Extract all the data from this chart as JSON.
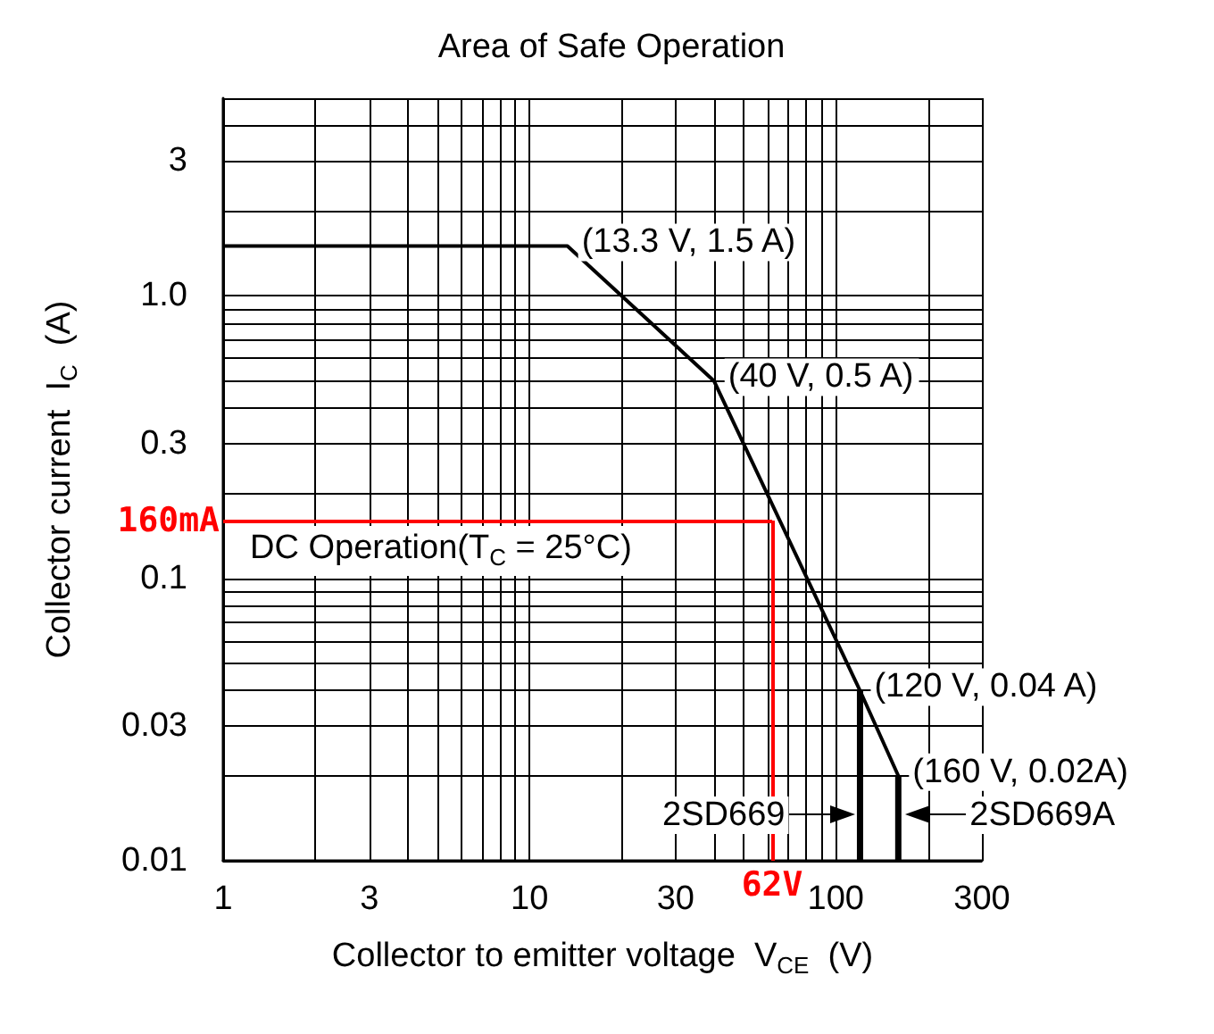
{
  "chart_data": {
    "type": "line",
    "title": "Area of Safe Operation",
    "xlabel": "Collector to emitter voltage  V$_{CE}$  (V)",
    "ylabel": "Collector current  I$_{C}$  (A)",
    "log": "xy",
    "xlim": [
      1,
      300
    ],
    "ylim": [
      0.01,
      5
    ],
    "xticks": [
      1,
      3,
      10,
      30,
      100,
      300
    ],
    "yticks": [
      0.01,
      0.03,
      0.1,
      0.3,
      {
        "value": 1,
        "label": "1.0"
      },
      3
    ],
    "grid": true,
    "marker": "none",
    "line_style": "solid",
    "series": [
      {
        "color": "#000000",
        "x": [
          1,
          13.3,
          40,
          120,
          160
        ],
        "values": [
          1.5,
          1.5,
          0.5,
          0.04,
          0.02
        ]
      },
      {
        "color": "#000000",
        "x": [
          120,
          120
        ],
        "values": [
          0.04,
          0.01
        ]
      },
      {
        "color": "#000000",
        "x": [
          160,
          160
        ],
        "values": [
          0.02,
          0.01
        ]
      }
    ],
    "ref_lines": [
      {
        "axis": "y",
        "value": 0.16,
        "label": "160mA",
        "color": "#ff0000"
      },
      {
        "axis": "x",
        "value": 62,
        "label": "62V",
        "color": "#ff0000"
      }
    ],
    "annotations": [
      "DC Operation(T$_{C}$ = 25°C)",
      {
        "text": "(13.3 V, 1.5 A)",
        "x": 13.3,
        "y": 1.5
      },
      {
        "text": "(40 V, 0.5 A)",
        "x": 40,
        "y": 0.5
      },
      {
        "text": "(120 V, 0.04 A)",
        "x": 120,
        "y": 0.04
      },
      {
        "text": "(160 V, 0.02A)",
        "x": 160,
        "y": 0.02
      },
      {
        "text": "2SD669",
        "x": 120,
        "y": 0.0145
      },
      {
        "text": "2SD669A",
        "x": 160,
        "y": 0.0145
      }
    ]
  }
}
